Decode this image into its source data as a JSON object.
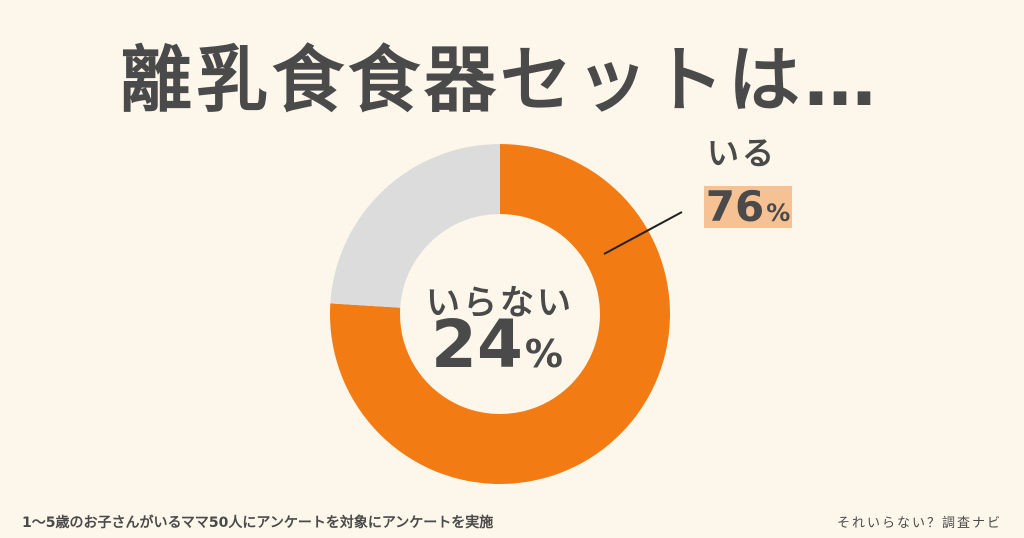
{
  "title": "離乳食食器セットは…",
  "chart_data": {
    "type": "pie",
    "variant": "donut",
    "categories": [
      "いる",
      "いらない"
    ],
    "values": [
      76,
      24
    ],
    "unit": "%",
    "colors": [
      "#f27b13",
      "#dcdcdc"
    ],
    "labels": {
      "yes": {
        "text": "いる",
        "value": "76",
        "unit": "%"
      },
      "no": {
        "text": "いらない",
        "value": "24",
        "unit": "%"
      }
    }
  },
  "footnote": "1～5歳のお子さんがいるママ50人にアンケートを対象にアンケートを実施",
  "brand": "それいらない？調査ナビ",
  "colors": {
    "background": "#fdf6ea",
    "accent": "#f27b13",
    "secondary": "#dcdcdc",
    "highlight": "#f6c294",
    "text": "#4a4a4a"
  }
}
